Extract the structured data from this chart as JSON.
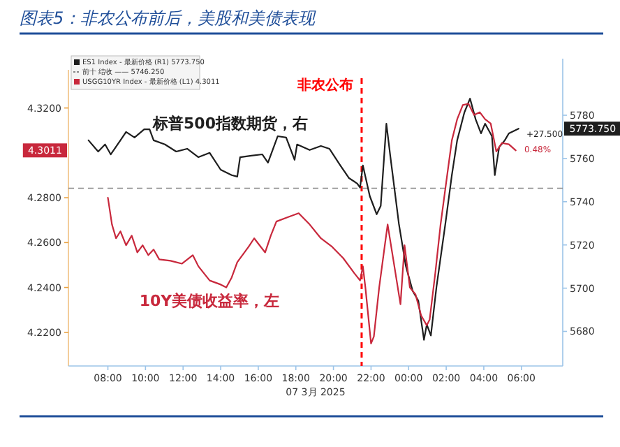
{
  "chart_data": {
    "type": "line",
    "title": "图表5：非农公布前后，美股和美债表现",
    "xlabel": "07 3月 2025",
    "xlim": [
      "2025-03-07T05:54",
      "2025-03-08T08:12"
    ],
    "xticks": [
      {
        "value": "2025-03-07T08:00",
        "label": "08:00"
      },
      {
        "value": "2025-03-07T10:00",
        "label": "10:00"
      },
      {
        "value": "2025-03-07T12:00",
        "label": "12:00"
      },
      {
        "value": "2025-03-07T14:00",
        "label": "14:00"
      },
      {
        "value": "2025-03-07T16:00",
        "label": "16:00"
      },
      {
        "value": "2025-03-07T18:00",
        "label": "18:00"
      },
      {
        "value": "2025-03-07T20:00",
        "label": "20:00"
      },
      {
        "value": "2025-03-07T22:00",
        "label": "22:00"
      },
      {
        "value": "2025-03-08T00:00",
        "label": "00:00"
      },
      {
        "value": "2025-03-08T02:00",
        "label": "02:00"
      },
      {
        "value": "2025-03-08T04:00",
        "label": "04:00"
      },
      {
        "value": "2025-03-08T06:00",
        "label": "06:00"
      }
    ],
    "ylim": [
      4.205,
      4.337
    ],
    "yticks": [
      {
        "value": 4.22,
        "label": "4.2200"
      },
      {
        "value": 4.24,
        "label": "4.2400"
      },
      {
        "value": 4.26,
        "label": "4.2600"
      },
      {
        "value": 4.28,
        "label": "4.2800"
      },
      {
        "value": 4.32,
        "label": "4.3200"
      }
    ],
    "y2lim": [
      5664,
      5801
    ],
    "y2ticks": [
      5680,
      5700,
      5720,
      5740,
      5760,
      5780
    ],
    "grid": false,
    "legend": "top left",
    "marker": "none",
    "line_style": "solid",
    "ref_lines": [
      {
        "axis": "x",
        "value": "2025-03-07T21:30",
        "label": "非农公布",
        "color": "#ff0000",
        "line_style": "dashed"
      },
      {
        "axis": "y2",
        "value": 5746.25,
        "label": "前十 结收 ——  5746.250",
        "color": "#888888",
        "line_style": "dashed"
      }
    ],
    "series": [
      {
        "name": "ES1 Index - 最新价格 (R1)  5773.750",
        "color": "#1e1e1e",
        "axis": "y2",
        "x": [
          "2025-03-07T06:58",
          "2025-03-07T07:29",
          "2025-03-07T07:51",
          "2025-03-07T08:09",
          "2025-03-07T08:40",
          "2025-03-07T08:58",
          "2025-03-07T09:25",
          "2025-03-07T09:56",
          "2025-03-07T10:13",
          "2025-03-07T10:26",
          "2025-03-07T11:02",
          "2025-03-07T11:38",
          "2025-03-07T12:13",
          "2025-03-07T12:49",
          "2025-03-07T13:25",
          "2025-03-07T14:00",
          "2025-03-07T14:35",
          "2025-03-07T14:53",
          "2025-03-07T15:02",
          "2025-03-07T15:38",
          "2025-03-07T16:13",
          "2025-03-07T16:31",
          "2025-03-07T17:02",
          "2025-03-07T17:29",
          "2025-03-07T17:56",
          "2025-03-07T18:04",
          "2025-03-07T18:44",
          "2025-03-07T19:20",
          "2025-03-07T19:47",
          "2025-03-07T20:22",
          "2025-03-07T20:49",
          "2025-03-07T21:16",
          "2025-03-07T21:25",
          "2025-03-07T21:34",
          "2025-03-07T21:56",
          "2025-03-07T22:18",
          "2025-03-07T22:31",
          "2025-03-07T22:49",
          "2025-03-07T23:02",
          "2025-03-07T23:29",
          "2025-03-07T23:51",
          "2025-03-08T00:13",
          "2025-03-08T00:31",
          "2025-03-08T00:49",
          "2025-03-08T00:58",
          "2025-03-08T01:11",
          "2025-03-08T01:29",
          "2025-03-08T01:56",
          "2025-03-08T02:18",
          "2025-03-08T02:35",
          "2025-03-08T02:58",
          "2025-03-08T03:16",
          "2025-03-08T03:34",
          "2025-03-08T03:51",
          "2025-03-08T04:04",
          "2025-03-08T04:26",
          "2025-03-08T04:35",
          "2025-03-08T04:49",
          "2025-03-08T05:07",
          "2025-03-08T05:20",
          "2025-03-08T05:51"
        ],
        "values": [
          5768.4,
          5763.2,
          5766.5,
          5761.9,
          5768.4,
          5772.3,
          5769.7,
          5773.5,
          5773.5,
          5768.4,
          5766.5,
          5763.2,
          5764.5,
          5760.6,
          5762.6,
          5754.8,
          5752.3,
          5751.6,
          5760.6,
          5761.3,
          5761.9,
          5758.1,
          5770.3,
          5769.7,
          5759.4,
          5766.5,
          5763.9,
          5765.8,
          5764.5,
          5756.8,
          5751.0,
          5748.4,
          5746.5,
          5756.8,
          5742.6,
          5734.2,
          5738.1,
          5776.1,
          5760.6,
          5729.7,
          5710.3,
          5698.7,
          5694.2,
          5676.1,
          5683.2,
          5678.1,
          5700.6,
          5728.4,
          5752.3,
          5768.4,
          5781.3,
          5787.7,
          5778.1,
          5771.6,
          5776.1,
          5770.3,
          5752.3,
          5765.2,
          5768.4,
          5771.6,
          5773.8
        ]
      },
      {
        "name": "USGG10YR Index - 最新价格 (L1)  4.3011",
        "color": "#c8283c",
        "x": [
          "2025-03-07T08:00",
          "2025-03-07T08:13",
          "2025-03-07T08:26",
          "2025-03-07T08:40",
          "2025-03-07T08:58",
          "2025-03-07T09:16",
          "2025-03-07T09:34",
          "2025-03-07T09:51",
          "2025-03-07T10:09",
          "2025-03-07T10:26",
          "2025-03-07T10:44",
          "2025-03-07T11:20",
          "2025-03-07T11:56",
          "2025-03-07T12:31",
          "2025-03-07T12:49",
          "2025-03-07T13:25",
          "2025-03-07T14:00",
          "2025-03-07T14:18",
          "2025-03-07T14:35",
          "2025-03-07T14:53",
          "2025-03-07T15:29",
          "2025-03-07T15:47",
          "2025-03-07T16:22",
          "2025-03-07T16:40",
          "2025-03-07T16:58",
          "2025-03-07T17:34",
          "2025-03-07T18:09",
          "2025-03-07T18:44",
          "2025-03-07T19:20",
          "2025-03-07T19:56",
          "2025-03-07T20:31",
          "2025-03-07T21:07",
          "2025-03-07T21:25",
          "2025-03-07T21:34",
          "2025-03-07T21:42",
          "2025-03-07T22:00",
          "2025-03-07T22:09",
          "2025-03-07T22:26",
          "2025-03-07T22:44",
          "2025-03-07T22:53",
          "2025-03-07T23:11",
          "2025-03-07T23:34",
          "2025-03-07T23:47",
          "2025-03-08T00:04",
          "2025-03-08T00:22",
          "2025-03-08T00:40",
          "2025-03-08T00:58",
          "2025-03-08T01:07",
          "2025-03-08T01:25",
          "2025-03-08T01:42",
          "2025-03-08T02:00",
          "2025-03-08T02:18",
          "2025-03-08T02:35",
          "2025-03-08T02:53",
          "2025-03-08T03:11",
          "2025-03-08T03:29",
          "2025-03-08T03:47",
          "2025-03-08T04:04",
          "2025-03-08T04:22",
          "2025-03-08T04:40",
          "2025-03-08T04:58",
          "2025-03-08T05:20",
          "2025-03-08T05:42"
        ],
        "values": [
          4.28,
          4.2681,
          4.2619,
          4.265,
          4.2588,
          4.2631,
          4.2556,
          4.2588,
          4.2544,
          4.2569,
          4.2525,
          4.2519,
          4.2506,
          4.2544,
          4.2494,
          4.2431,
          4.2413,
          4.24,
          4.2444,
          4.2513,
          4.2581,
          4.2619,
          4.2556,
          4.2631,
          4.2694,
          4.2713,
          4.2731,
          4.2681,
          4.2619,
          4.2581,
          4.2531,
          4.2463,
          4.2431,
          4.2494,
          4.24,
          4.215,
          4.2181,
          4.24,
          4.2588,
          4.2681,
          4.2525,
          4.2325,
          4.2588,
          4.24,
          4.2369,
          4.2275,
          4.2231,
          4.2256,
          4.2463,
          4.2681,
          4.2869,
          4.3056,
          4.315,
          4.3213,
          4.3219,
          4.3169,
          4.3181,
          4.315,
          4.3131,
          4.3006,
          4.3044,
          4.3038,
          4.3011
        ]
      }
    ],
    "annotations": [
      "标普500指数期货，右",
      "10Y美债收益率，左",
      "+27.500",
      "0.48%",
      "4.3011",
      "5773.750"
    ]
  }
}
